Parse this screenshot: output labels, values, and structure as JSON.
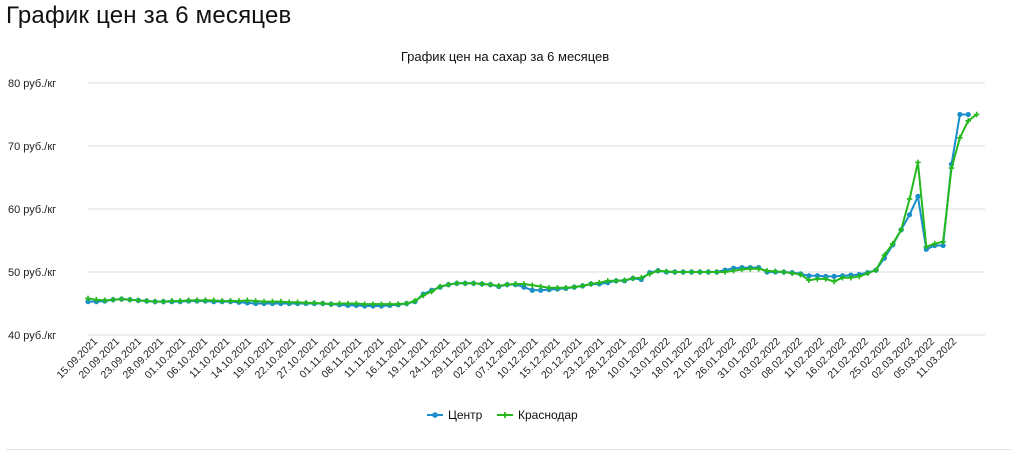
{
  "page": {
    "heading": "График цен за 6 месяцев"
  },
  "colors": {
    "series_center": "#1a8fc9",
    "series_krasnodar": "#26b91f",
    "grid": "#dcdcdc",
    "axis_text": "#222222"
  },
  "chart_data": {
    "type": "line",
    "title": "График цен на сахар за 6 месяцев",
    "ylim": [
      40,
      80
    ],
    "y_ticks": [
      {
        "value": 40,
        "label": "40 руб./кг"
      },
      {
        "value": 50,
        "label": "50 руб./кг"
      },
      {
        "value": 60,
        "label": "60 руб./кг"
      },
      {
        "value": 70,
        "label": "70 руб./кг"
      },
      {
        "value": 80,
        "label": "80 руб./кг"
      }
    ],
    "grid": true,
    "legend_position": "bottom",
    "x_tick_labels": [
      "15.09.2021",
      "20.09.2021",
      "23.09.2021",
      "28.09.2021",
      "01.10.2021",
      "06.10.2021",
      "11.10.2021",
      "14.10.2021",
      "19.10.2021",
      "22.10.2021",
      "27.10.2021",
      "01.11.2021",
      "08.11.2021",
      "11.11.2021",
      "16.11.2021",
      "19.11.2021",
      "24.11.2021",
      "29.11.2021",
      "02.12.2021",
      "07.12.2021",
      "10.12.2021",
      "15.12.2021",
      "20.12.2021",
      "23.12.2021",
      "28.12.2021",
      "10.01.2022",
      "13.01.2022",
      "18.01.2022",
      "21.01.2022",
      "26.01.2022",
      "31.01.2022",
      "03.02.2022",
      "08.02.2022",
      "11.02.2022",
      "16.02.2022",
      "21.02.2022",
      "25.02.2022",
      "02.03.2022",
      "05.03.2022",
      "11.03.2022"
    ],
    "series": [
      {
        "name": "Центр",
        "values": [
          45.3,
          45.3,
          45.4,
          45.6,
          45.7,
          45.6,
          45.5,
          45.4,
          45.3,
          45.3,
          45.3,
          45.3,
          45.4,
          45.4,
          45.4,
          45.3,
          45.3,
          45.3,
          45.2,
          45.1,
          45.0,
          45.0,
          45.0,
          45.0,
          45.0,
          45.0,
          45.0,
          45.0,
          45.0,
          44.9,
          44.8,
          44.7,
          44.7,
          44.6,
          44.6,
          44.6,
          44.7,
          44.8,
          45.0,
          45.3,
          46.5,
          47.1,
          47.6,
          48.0,
          48.2,
          48.2,
          48.2,
          48.1,
          48.0,
          47.7,
          48.0,
          48.0,
          47.6,
          47.1,
          47.1,
          47.2,
          47.3,
          47.4,
          47.6,
          47.8,
          48.1,
          48.1,
          48.3,
          48.6,
          48.6,
          49.0,
          48.8,
          49.9,
          50.2,
          50.0,
          50.0,
          50.0,
          50.0,
          50.0,
          50.0,
          50.0,
          50.3,
          50.6,
          50.7,
          50.7,
          50.7,
          50.0,
          50.0,
          50.0,
          49.9,
          49.7,
          49.4,
          49.4,
          49.3,
          49.3,
          49.4,
          49.5,
          49.6,
          49.9,
          50.3,
          52.2,
          54.3,
          56.7,
          59.1,
          62.0,
          53.6,
          54.2,
          54.2,
          67.1,
          75.0,
          75.0,
          null,
          null
        ]
      },
      {
        "name": "Краснодар",
        "values": [
          45.8,
          45.6,
          45.5,
          45.6,
          45.7,
          45.6,
          45.5,
          45.4,
          45.3,
          45.3,
          45.4,
          45.4,
          45.5,
          45.5,
          45.5,
          45.5,
          45.4,
          45.4,
          45.4,
          45.5,
          45.4,
          45.3,
          45.3,
          45.3,
          45.2,
          45.2,
          45.1,
          45.1,
          45.0,
          44.9,
          45.0,
          45.0,
          45.0,
          44.9,
          44.9,
          44.9,
          44.9,
          44.9,
          45.0,
          45.4,
          46.3,
          46.9,
          47.7,
          48.0,
          48.2,
          48.2,
          48.2,
          48.1,
          48.0,
          47.8,
          48.0,
          48.1,
          48.1,
          47.9,
          47.7,
          47.5,
          47.5,
          47.5,
          47.6,
          47.8,
          48.1,
          48.3,
          48.6,
          48.6,
          48.7,
          49.0,
          49.1,
          49.7,
          50.2,
          50.1,
          50.0,
          50.0,
          50.0,
          50.0,
          50.0,
          50.0,
          50.0,
          50.2,
          50.4,
          50.5,
          50.5,
          50.2,
          50.1,
          50.0,
          49.8,
          49.6,
          48.7,
          48.9,
          48.9,
          48.5,
          49.1,
          49.1,
          49.3,
          49.8,
          50.3,
          52.7,
          54.5,
          56.7,
          61.6,
          67.4,
          54.0,
          54.5,
          54.8,
          66.5,
          71.3,
          74.0,
          75.0,
          null
        ]
      }
    ]
  }
}
